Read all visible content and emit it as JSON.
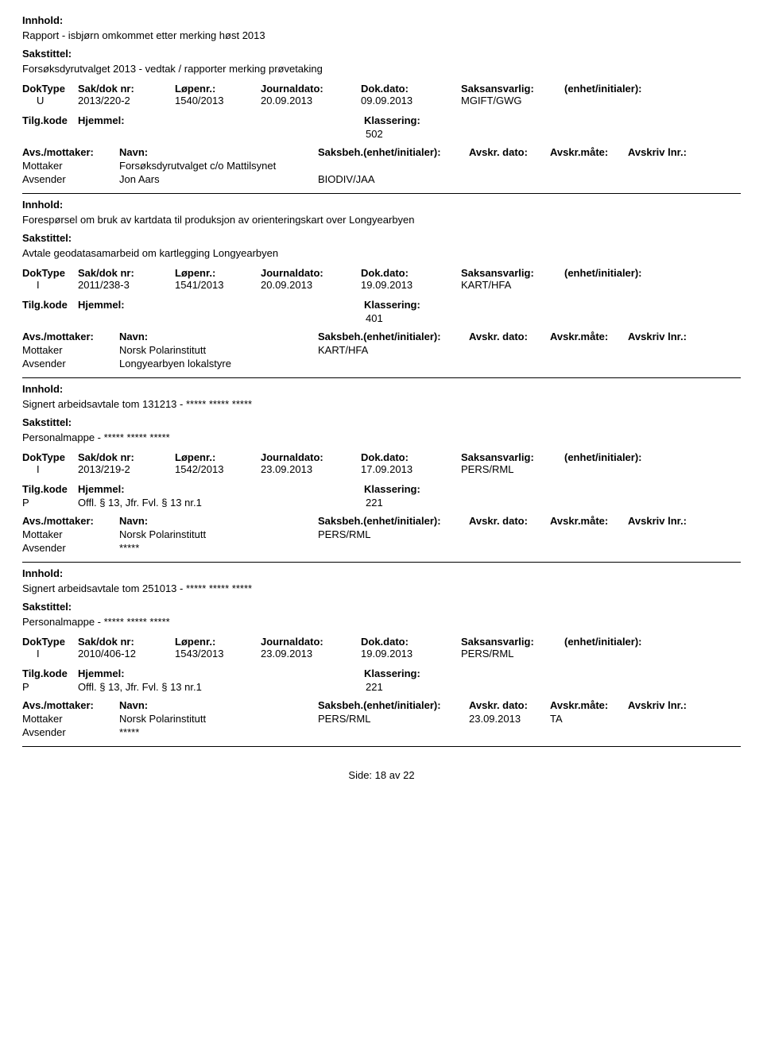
{
  "labels": {
    "innhold": "Innhold:",
    "sakstittel": "Sakstittel:",
    "doktype": "DokType",
    "sakdok": "Sak/dok nr:",
    "lopenr": "Løpenr.:",
    "journaldato": "Journaldato:",
    "dokdato": "Dok.dato:",
    "saksansvarlig": "Saksansvarlig:",
    "enhet": "(enhet/initialer):",
    "tilgkode": "Tilg.kode",
    "hjemmel": "Hjemmel:",
    "klassering": "Klassering:",
    "avsmottaker": "Avs./mottaker:",
    "navn": "Navn:",
    "saksbeh": "Saksbeh.(enhet/initialer):",
    "avskrdato": "Avskr. dato:",
    "avskrmate": "Avskr.måte:",
    "avskrlnr": "Avskriv lnr.:",
    "mottaker": "Mottaker",
    "avsender": "Avsender",
    "side": "Side:",
    "av": "av"
  },
  "records": [
    {
      "innhold": "Rapport - isbjørn omkommet etter merking høst 2013",
      "sakstittel": "Forsøksdyrutvalget 2013 - vedtak / rapporter merking prøvetaking",
      "doktype": "U",
      "sakdok": "2013/220-2",
      "lopenr": "1540/2013",
      "journaldato": "20.09.2013",
      "dokdato": "09.09.2013",
      "saksansvarlig": "MGIFT/GWG",
      "tilgkode": "",
      "hjemmel": "",
      "klassering": "502",
      "parties": [
        {
          "role": "Mottaker",
          "name": "Forsøksdyrutvalget c/o Mattilsynet",
          "saksbeh": "",
          "avskrdato": "",
          "avskrmate": ""
        },
        {
          "role": "Avsender",
          "name": "Jon Aars",
          "saksbeh": "BIODIV/JAA",
          "avskrdato": "",
          "avskrmate": ""
        }
      ]
    },
    {
      "innhold": "Forespørsel om bruk av kartdata til produksjon av orienteringskart over Longyearbyen",
      "sakstittel": "Avtale geodatasamarbeid om kartlegging Longyearbyen",
      "doktype": "I",
      "sakdok": "2011/238-3",
      "lopenr": "1541/2013",
      "journaldato": "20.09.2013",
      "dokdato": "19.09.2013",
      "saksansvarlig": "KART/HFA",
      "tilgkode": "",
      "hjemmel": "",
      "klassering": "401",
      "parties": [
        {
          "role": "Mottaker",
          "name": "Norsk Polarinstitutt",
          "saksbeh": "KART/HFA",
          "avskrdato": "",
          "avskrmate": ""
        },
        {
          "role": "Avsender",
          "name": "Longyearbyen lokalstyre",
          "saksbeh": "",
          "avskrdato": "",
          "avskrmate": ""
        }
      ]
    },
    {
      "innhold": "Signert arbeidsavtale tom 131213 - ***** ***** *****",
      "sakstittel": "Personalmappe - ***** ***** *****",
      "doktype": "I",
      "sakdok": "2013/219-2",
      "lopenr": "1542/2013",
      "journaldato": "23.09.2013",
      "dokdato": "17.09.2013",
      "saksansvarlig": "PERS/RML",
      "tilgkode": "P",
      "hjemmel": "Offl. § 13, Jfr. Fvl. § 13 nr.1",
      "klassering": "221",
      "parties": [
        {
          "role": "Mottaker",
          "name": "Norsk Polarinstitutt",
          "saksbeh": "PERS/RML",
          "avskrdato": "",
          "avskrmate": ""
        },
        {
          "role": "Avsender",
          "name": "*****",
          "saksbeh": "",
          "avskrdato": "",
          "avskrmate": ""
        }
      ]
    },
    {
      "innhold": "Signert arbeidsavtale tom 251013 - ***** ***** *****",
      "sakstittel": "Personalmappe - ***** ***** *****",
      "doktype": "I",
      "sakdok": "2010/406-12",
      "lopenr": "1543/2013",
      "journaldato": "23.09.2013",
      "dokdato": "19.09.2013",
      "saksansvarlig": "PERS/RML",
      "tilgkode": "P",
      "hjemmel": "Offl. § 13, Jfr. Fvl. § 13 nr.1",
      "klassering": "221",
      "parties": [
        {
          "role": "Mottaker",
          "name": "Norsk Polarinstitutt",
          "saksbeh": "PERS/RML",
          "avskrdato": "23.09.2013",
          "avskrmate": "TA"
        },
        {
          "role": "Avsender",
          "name": "*****",
          "saksbeh": "",
          "avskrdato": "",
          "avskrmate": ""
        }
      ]
    }
  ],
  "pager": {
    "page": "18",
    "total": "22"
  }
}
